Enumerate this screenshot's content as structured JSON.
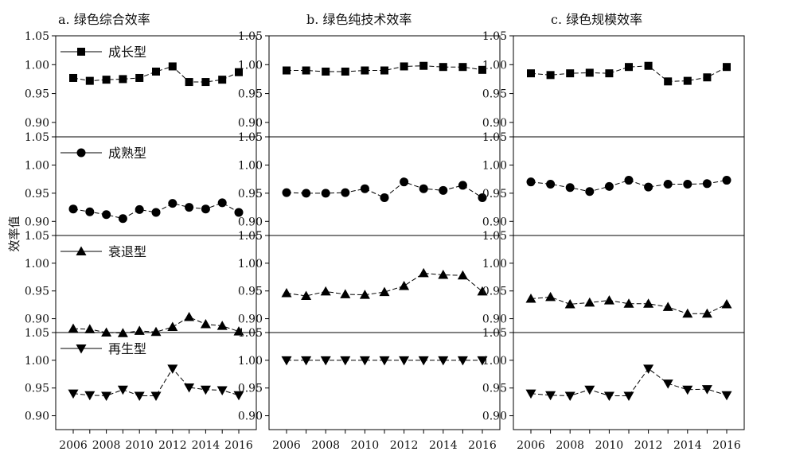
{
  "chart_data": {
    "type": "line",
    "ylabel": "效率值",
    "x": [
      2006,
      2007,
      2008,
      2009,
      2010,
      2011,
      2012,
      2013,
      2014,
      2015,
      2016
    ],
    "x_tick_labels": [
      "2006",
      "2008",
      "2010",
      "2012",
      "2014",
      "2016"
    ],
    "y_tick_labels": [
      "0.90",
      "0.95",
      "1.00",
      "1.05"
    ],
    "ylim": [
      0.875,
      1.05
    ],
    "markers": {
      "成长型": "square",
      "成熟型": "circle",
      "衰退型": "triangle-up",
      "再生型": "triangle-down"
    },
    "rows": [
      "成长型",
      "成熟型",
      "衰退型",
      "再生型"
    ],
    "panels": [
      {
        "title": "a. 绿色综合效率",
        "series": [
          {
            "name": "成长型",
            "values": [
              0.977,
              0.972,
              0.974,
              0.975,
              0.977,
              0.988,
              0.997,
              0.97,
              0.97,
              0.974,
              0.987
            ]
          },
          {
            "name": "成熟型",
            "values": [
              0.922,
              0.917,
              0.912,
              0.905,
              0.921,
              0.916,
              0.932,
              0.925,
              0.922,
              0.933,
              0.916
            ]
          },
          {
            "name": "衰退型",
            "values": [
              0.882,
              0.881,
              0.875,
              0.874,
              0.878,
              0.876,
              0.885,
              0.903,
              0.89,
              0.887,
              0.877
            ]
          },
          {
            "name": "再生型",
            "values": [
              0.94,
              0.937,
              0.936,
              0.947,
              0.936,
              0.936,
              0.985,
              0.951,
              0.947,
              0.946,
              0.937
            ]
          }
        ]
      },
      {
        "title": "b. 绿色纯技术效率",
        "series": [
          {
            "name": "成长型",
            "values": [
              0.99,
              0.99,
              0.988,
              0.988,
              0.99,
              0.99,
              0.997,
              0.998,
              0.996,
              0.996,
              0.991
            ]
          },
          {
            "name": "成熟型",
            "values": [
              0.951,
              0.95,
              0.95,
              0.951,
              0.958,
              0.942,
              0.97,
              0.958,
              0.955,
              0.964,
              0.942
            ]
          },
          {
            "name": "衰退型",
            "values": [
              0.946,
              0.941,
              0.949,
              0.944,
              0.943,
              0.948,
              0.959,
              0.982,
              0.979,
              0.978,
              0.949
            ]
          },
          {
            "name": "再生型",
            "values": [
              1.0,
              1.0,
              1.0,
              1.0,
              1.0,
              1.0,
              1.0,
              1.0,
              1.0,
              1.0,
              1.0
            ]
          }
        ]
      },
      {
        "title": "c. 绿色规模效率",
        "series": [
          {
            "name": "成长型",
            "values": [
              0.985,
              0.982,
              0.985,
              0.986,
              0.985,
              0.996,
              0.998,
              0.971,
              0.972,
              0.978,
              0.996
            ]
          },
          {
            "name": "成熟型",
            "values": [
              0.97,
              0.966,
              0.96,
              0.953,
              0.962,
              0.973,
              0.961,
              0.966,
              0.966,
              0.967,
              0.973
            ]
          },
          {
            "name": "衰退型",
            "values": [
              0.936,
              0.939,
              0.926,
              0.929,
              0.933,
              0.927,
              0.927,
              0.921,
              0.909,
              0.909,
              0.926
            ]
          },
          {
            "name": "再生型",
            "values": [
              0.94,
              0.937,
              0.936,
              0.947,
              0.936,
              0.936,
              0.985,
              0.958,
              0.947,
              0.948,
              0.937
            ]
          }
        ]
      }
    ]
  }
}
